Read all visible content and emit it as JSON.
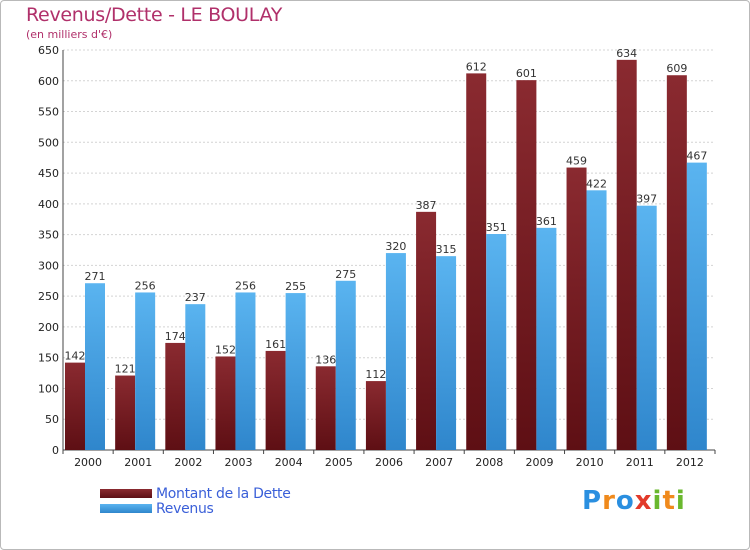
{
  "chart_data": {
    "type": "bar",
    "title": "Revenus/Dette - LE BOULAY",
    "subtitle": "(en milliers d'€)",
    "xlabel": "",
    "ylabel": "",
    "categories": [
      "2000",
      "2001",
      "2002",
      "2003",
      "2004",
      "2005",
      "2006",
      "2007",
      "2008",
      "2009",
      "2010",
      "2011",
      "2012"
    ],
    "series": [
      {
        "name": "Montant de la Dette",
        "color": "#7a1e24",
        "values": [
          142,
          121,
          174,
          152,
          161,
          136,
          112,
          387,
          612,
          601,
          459,
          634,
          609
        ]
      },
      {
        "name": "Revenus",
        "color": "#4aa3e6",
        "values": [
          271,
          256,
          237,
          256,
          255,
          275,
          320,
          315,
          351,
          361,
          422,
          397,
          467
        ]
      }
    ],
    "ylim": [
      0,
      650
    ],
    "yticks": [
      0,
      50,
      100,
      150,
      200,
      250,
      300,
      350,
      400,
      450,
      500,
      550,
      600,
      650
    ],
    "grid": true,
    "legend": "bottom-left"
  },
  "logo": {
    "letters": [
      {
        "char": "P",
        "color": "#2a8fe0"
      },
      {
        "char": "r",
        "color": "#f08a1c"
      },
      {
        "char": "o",
        "color": "#2a8fe0"
      },
      {
        "char": "x",
        "color": "#e23a2a"
      },
      {
        "char": "i",
        "color": "#6ab82e"
      },
      {
        "char": "t",
        "color": "#f08a1c"
      },
      {
        "char": "i",
        "color": "#6ab82e"
      }
    ]
  }
}
